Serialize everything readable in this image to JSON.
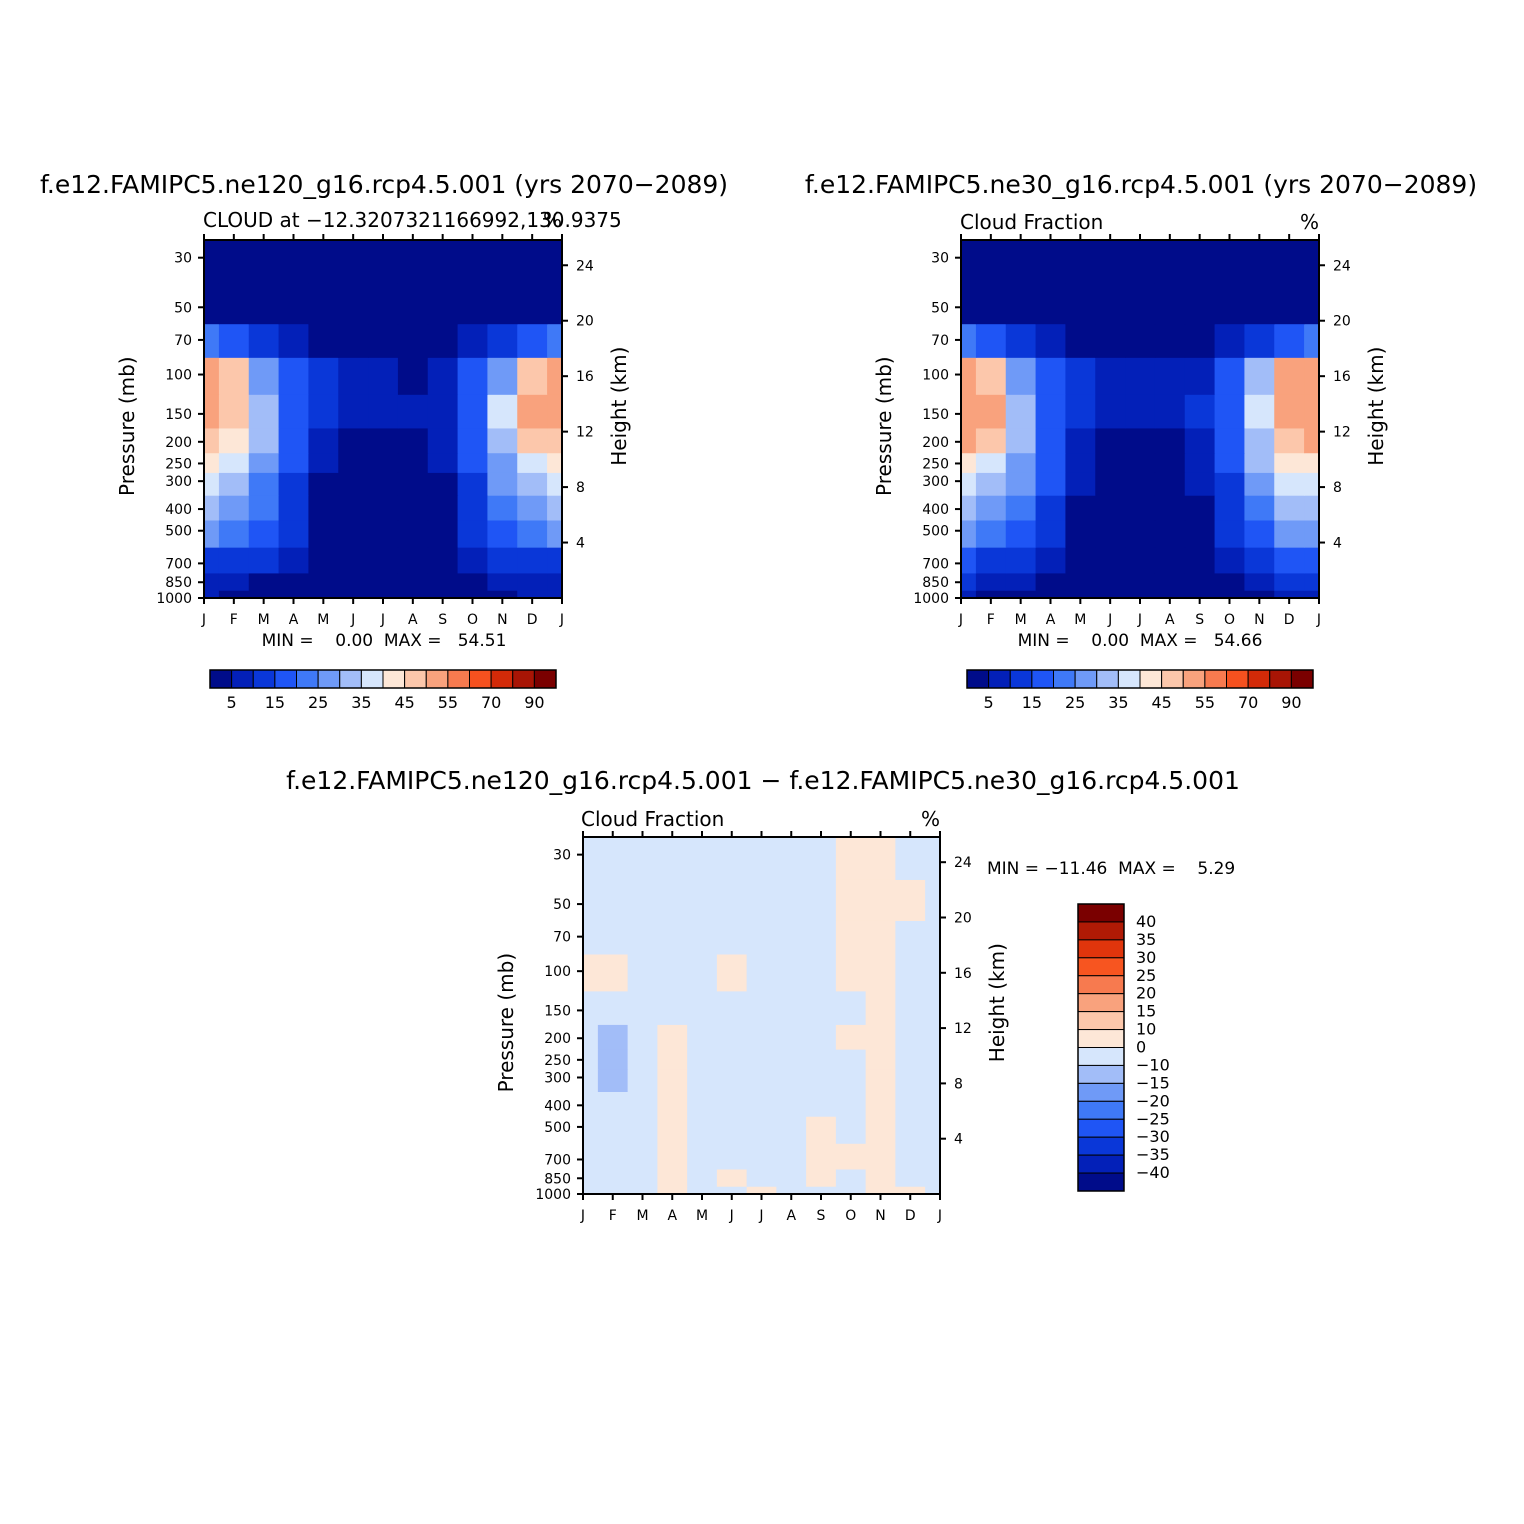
{
  "figure": {
    "panels": [
      {
        "id": "panel-ne120",
        "title": "f.e12.FAMIPC5.ne120_g16.rcp4.5.001 (yrs 2070−2089)",
        "subtitle_left": "CLOUD at −12.3207321166992,130.9375",
        "subtitle_right": "%",
        "stats": "MIN =    0.00  MAX =   54.51",
        "palette": "full"
      },
      {
        "id": "panel-ne30",
        "title": "f.e12.FAMIPC5.ne30_g16.rcp4.5.001 (yrs 2070−2089)",
        "subtitle_left": "Cloud Fraction",
        "subtitle_right": "%",
        "stats": "MIN =    0.00  MAX =   54.66",
        "palette": "full"
      },
      {
        "id": "panel-diff",
        "title": "f.e12.FAMIPC5.ne120_g16.rcp4.5.001 − f.e12.FAMIPC5.ne30_g16.rcp4.5.001",
        "subtitle_left": "Cloud Fraction",
        "subtitle_right": "%",
        "stats": "MIN = −11.46  MAX =    5.29",
        "palette": "diff"
      }
    ]
  },
  "chart_data": [
    {
      "type": "heatmap",
      "title": "f.e12.FAMIPC5.ne120_g16.rcp4.5.001 (yrs 2070−2089)",
      "subtitle": "CLOUD at −12.3207321166992,130.9375",
      "units": "%",
      "xlabel": "",
      "ylabel": "Pressure (mb)",
      "ylabel_right": "Height (km)",
      "x": [
        "J",
        "F",
        "M",
        "A",
        "M",
        "J",
        "J",
        "A",
        "S",
        "O",
        "N",
        "D",
        "J"
      ],
      "y_pressure_ticks": [
        30,
        50,
        70,
        100,
        150,
        200,
        250,
        300,
        400,
        500,
        700,
        850,
        1000
      ],
      "y_height_ticks": [
        4,
        8,
        12,
        16,
        20,
        24
      ],
      "ylim": [
        1000,
        25
      ],
      "y_scale": "log",
      "levels": [
        1000,
        850,
        700,
        500,
        400,
        300,
        250,
        200,
        150,
        100,
        70,
        50,
        30
      ],
      "values": [
        [
          5,
          4,
          3,
          1,
          0,
          0,
          0,
          0,
          0,
          2,
          4,
          5,
          5
        ],
        [
          8,
          6,
          4,
          2,
          0,
          0,
          0,
          0,
          1,
          3,
          6,
          8,
          8
        ],
        [
          14,
          12,
          10,
          5,
          1,
          0,
          0,
          0,
          1,
          6,
          12,
          14,
          14
        ],
        [
          25,
          22,
          16,
          10,
          2,
          0,
          0,
          0,
          2,
          11,
          18,
          24,
          25
        ],
        [
          30,
          27,
          20,
          12,
          3,
          0,
          0,
          0,
          3,
          12,
          22,
          29,
          30
        ],
        [
          35,
          32,
          24,
          14,
          4,
          1,
          1,
          1,
          4,
          14,
          26,
          34,
          35
        ],
        [
          40,
          37,
          27,
          15,
          5,
          1,
          1,
          1,
          5,
          15,
          29,
          39,
          40
        ],
        [
          47,
          42,
          30,
          16,
          6,
          2,
          2,
          2,
          6,
          16,
          32,
          45,
          47
        ],
        [
          54,
          49,
          33,
          18,
          10,
          5,
          5,
          5,
          8,
          18,
          35,
          52,
          54
        ],
        [
          51,
          46,
          28,
          15,
          10,
          8,
          6,
          3,
          8,
          15,
          29,
          48,
          51
        ],
        [
          20,
          16,
          10,
          6,
          4,
          2,
          1,
          1,
          2,
          6,
          12,
          18,
          20
        ],
        [
          2,
          1,
          1,
          0,
          0,
          0,
          0,
          0,
          0,
          0,
          1,
          2,
          2
        ],
        [
          0,
          0,
          0,
          0,
          0,
          0,
          0,
          0,
          0,
          0,
          0,
          0,
          0
        ]
      ],
      "min": 0.0,
      "max": 54.51,
      "colorbar_labels": [
        "5",
        "15",
        "25",
        "35",
        "45",
        "55",
        "70",
        "90"
      ]
    },
    {
      "type": "heatmap",
      "title": "f.e12.FAMIPC5.ne30_g16.rcp4.5.001 (yrs 2070−2089)",
      "subtitle": "Cloud Fraction",
      "units": "%",
      "xlabel": "",
      "ylabel": "Pressure (mb)",
      "ylabel_right": "Height (km)",
      "x": [
        "J",
        "F",
        "M",
        "A",
        "M",
        "J",
        "J",
        "A",
        "S",
        "O",
        "N",
        "D",
        "J"
      ],
      "y_pressure_ticks": [
        30,
        50,
        70,
        100,
        150,
        200,
        250,
        300,
        400,
        500,
        700,
        850,
        1000
      ],
      "y_height_ticks": [
        4,
        8,
        12,
        16,
        20,
        24
      ],
      "ylim": [
        1000,
        25
      ],
      "y_scale": "log",
      "levels": [
        1000,
        850,
        700,
        500,
        400,
        300,
        250,
        200,
        150,
        100,
        70,
        50,
        30
      ],
      "values": [
        [
          5,
          4,
          3,
          1,
          0,
          0,
          0,
          0,
          0,
          1,
          3,
          5,
          5
        ],
        [
          10,
          8,
          6,
          3,
          1,
          0,
          0,
          0,
          1,
          3,
          8,
          10,
          10
        ],
        [
          16,
          14,
          11,
          6,
          2,
          0,
          0,
          0,
          2,
          6,
          14,
          16,
          16
        ],
        [
          27,
          24,
          17,
          11,
          4,
          0,
          0,
          0,
          3,
          11,
          19,
          25,
          27
        ],
        [
          32,
          29,
          21,
          13,
          4,
          1,
          0,
          1,
          4,
          13,
          23,
          30,
          32
        ],
        [
          37,
          34,
          25,
          15,
          5,
          1,
          1,
          1,
          5,
          14,
          27,
          36,
          37
        ],
        [
          42,
          39,
          28,
          16,
          6,
          2,
          1,
          2,
          6,
          15,
          30,
          40,
          42
        ],
        [
          50,
          46,
          31,
          17,
          8,
          3,
          2,
          3,
          7,
          16,
          33,
          47,
          50
        ],
        [
          54,
          51,
          34,
          19,
          11,
          7,
          5,
          7,
          10,
          19,
          36,
          53,
          54
        ],
        [
          52,
          48,
          29,
          16,
          11,
          9,
          7,
          5,
          9,
          16,
          30,
          50,
          52
        ],
        [
          21,
          17,
          11,
          7,
          4,
          2,
          1,
          1,
          2,
          7,
          13,
          19,
          21
        ],
        [
          2,
          1,
          1,
          0,
          0,
          0,
          0,
          0,
          0,
          0,
          1,
          2,
          2
        ],
        [
          0,
          0,
          0,
          0,
          0,
          0,
          0,
          0,
          0,
          0,
          0,
          0,
          0
        ]
      ],
      "min": 0.0,
      "max": 54.66,
      "colorbar_labels": [
        "5",
        "15",
        "25",
        "35",
        "45",
        "55",
        "70",
        "90"
      ]
    },
    {
      "type": "heatmap",
      "title": "f.e12.FAMIPC5.ne120_g16.rcp4.5.001 − f.e12.FAMIPC5.ne30_g16.rcp4.5.001",
      "subtitle": "Cloud Fraction",
      "units": "%",
      "xlabel": "",
      "ylabel": "Pressure (mb)",
      "ylabel_right": "Height (km)",
      "x": [
        "J",
        "F",
        "M",
        "A",
        "M",
        "J",
        "J",
        "A",
        "S",
        "O",
        "N",
        "D",
        "J"
      ],
      "y_pressure_ticks": [
        30,
        50,
        70,
        100,
        150,
        200,
        250,
        300,
        400,
        500,
        700,
        850,
        1000
      ],
      "y_height_ticks": [
        4,
        8,
        12,
        16,
        20,
        24
      ],
      "ylim": [
        1000,
        25
      ],
      "y_scale": "log",
      "levels": [
        1000,
        850,
        700,
        500,
        400,
        300,
        250,
        200,
        150,
        100,
        70,
        50,
        30
      ],
      "values": [
        [
          -1,
          -1,
          -1,
          1,
          -1,
          -1,
          1,
          -1,
          -1,
          -1,
          1,
          1,
          -1
        ],
        [
          -1,
          -1,
          -1,
          1,
          -1,
          1,
          -1,
          -1,
          1,
          -1,
          1,
          -1,
          -1
        ],
        [
          -1,
          -1,
          -1,
          1,
          -1,
          -1,
          -1,
          -1,
          1,
          1,
          1,
          -1,
          -1
        ],
        [
          -1,
          -1,
          -1,
          1,
          -1,
          -1,
          -1,
          -1,
          1,
          -1,
          1,
          -1,
          -1
        ],
        [
          -1,
          -1,
          -1,
          1,
          -1,
          -1,
          -1,
          -1,
          -1,
          -1,
          1,
          -1,
          -1
        ],
        [
          -1,
          -3,
          -1,
          1,
          -1,
          -1,
          -1,
          -1,
          -1,
          -1,
          1,
          -1,
          -1
        ],
        [
          -1,
          -3,
          -1,
          1,
          -1,
          -1,
          -1,
          -1,
          -1,
          -1,
          1,
          -1,
          -1
        ],
        [
          -1,
          -3,
          -1,
          1,
          -1,
          -1,
          -1,
          -1,
          -1,
          1,
          1,
          -1,
          -1
        ],
        [
          -1,
          -1,
          -1,
          -1,
          -1,
          -1,
          -1,
          -1,
          -1,
          -1,
          1,
          -1,
          -1
        ],
        [
          1,
          1,
          -1,
          -1,
          -1,
          1,
          -1,
          -1,
          -1,
          1,
          1,
          -1,
          -1
        ],
        [
          -1,
          -1,
          -1,
          -1,
          -1,
          -1,
          -1,
          -1,
          -1,
          1,
          1,
          -1,
          -1
        ],
        [
          -1,
          -1,
          -1,
          -1,
          -1,
          -1,
          -1,
          -1,
          -1,
          1,
          1,
          1,
          -1
        ],
        [
          -1,
          -1,
          -1,
          -1,
          -1,
          -1,
          -1,
          -1,
          -1,
          1,
          1,
          -1,
          -1
        ]
      ],
      "min": -11.46,
      "max": 5.29,
      "colorbar_labels": [
        "40",
        "35",
        "30",
        "25",
        "20",
        "15",
        "10",
        "0",
        "−10",
        "−15",
        "−20",
        "−25",
        "−30",
        "−35",
        "−40"
      ]
    }
  ],
  "colors": {
    "full_palette": [
      "#000c8a",
      "#0320b8",
      "#0a37d8",
      "#1f55f5",
      "#3f79f7",
      "#6f9af7",
      "#a2bdf8",
      "#d6e6fc",
      "#fde7d7",
      "#fcc7ab",
      "#f9a27d",
      "#f77a4f",
      "#f5511f",
      "#d32a08",
      "#a81505",
      "#7a0000"
    ],
    "diff_palette_top_to_bottom": [
      "#7a0000",
      "#b01a05",
      "#e0350c",
      "#f75520",
      "#f77a4f",
      "#f9a27d",
      "#fcc7ab",
      "#fde7d7",
      "#d6e6fc",
      "#a2bdf8",
      "#6f9af7",
      "#3f79f7",
      "#1f55f5",
      "#0a37d8",
      "#0320b8",
      "#000c8a"
    ]
  }
}
